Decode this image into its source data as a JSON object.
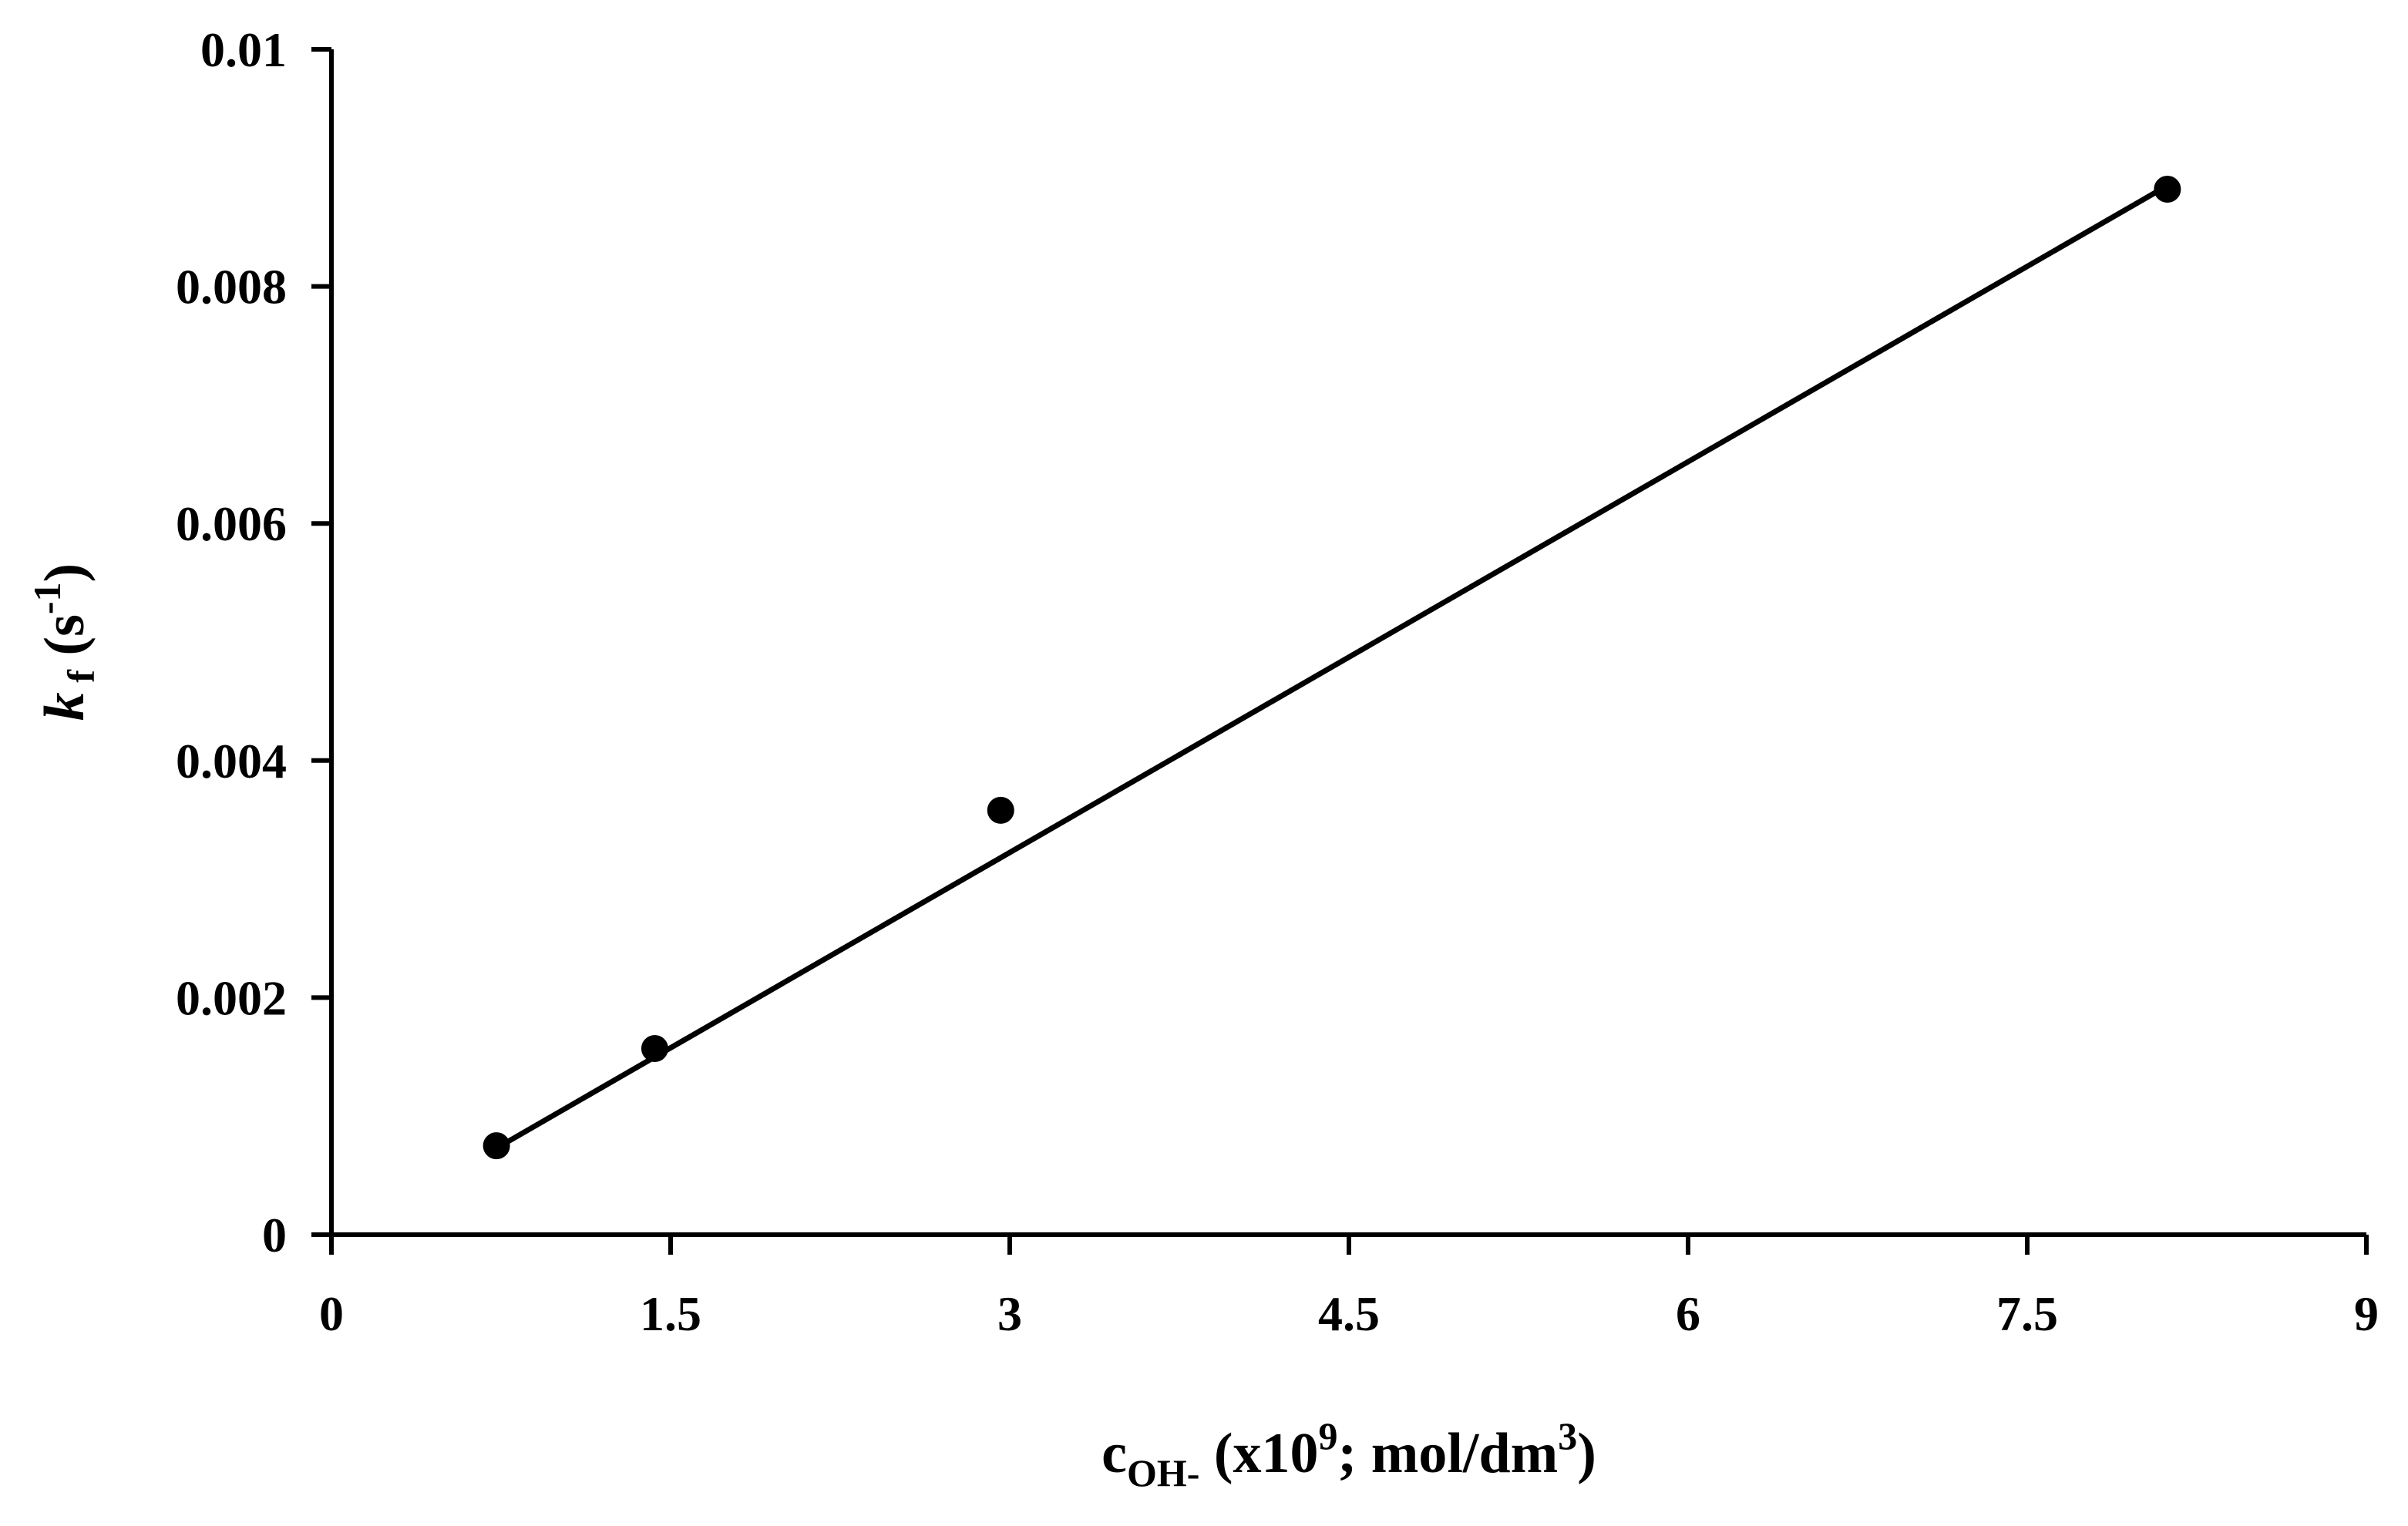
{
  "chart_data": {
    "type": "scatter",
    "title": "",
    "xlabel": {
      "main": "c",
      "sub": "OH-",
      "units_prefix": " (x10",
      "units_sup": "9",
      "units_mid": "; mol/dm",
      "units_sup2": "3",
      "units_suffix": ")"
    },
    "ylabel": {
      "main": "k",
      "sub": " f",
      "units_prefix": " (s",
      "units_sup": "-1",
      "units_suffix": ")"
    },
    "xlim": [
      0,
      9
    ],
    "ylim": [
      0,
      0.01
    ],
    "x_ticks": [
      0,
      1.5,
      3,
      4.5,
      6,
      7.5,
      9
    ],
    "x_tick_labels": [
      "0",
      "1.5",
      "3",
      "4.5",
      "6",
      "7.5",
      "9"
    ],
    "y_ticks": [
      0,
      0.002,
      0.004,
      0.006,
      0.008,
      0.01
    ],
    "y_tick_labels": [
      "0",
      "0.002",
      "0.004",
      "0.006",
      "0.008",
      "0.01"
    ],
    "grid": false,
    "legend": "none",
    "series": [
      {
        "values": [
          {
            "x": 0.73,
            "y": 0.00075
          },
          {
            "x": 1.43,
            "y": 0.00157
          },
          {
            "x": 2.96,
            "y": 0.00358
          },
          {
            "x": 8.12,
            "y": 0.00882
          }
        ],
        "marker": "circle",
        "color": "#000000"
      }
    ],
    "trendline": {
      "type": "linear",
      "x_start": 0.73,
      "y_start": 0.00073,
      "x_end": 8.12,
      "y_end": 0.00885,
      "color": "#000000"
    }
  }
}
